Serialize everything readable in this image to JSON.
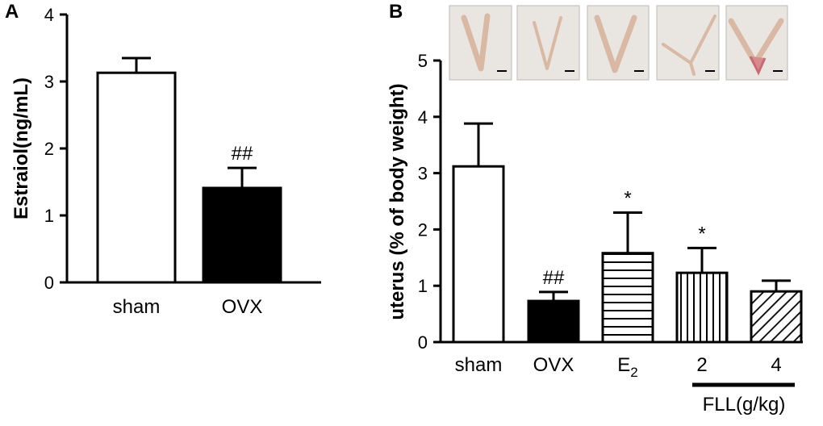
{
  "panels": {
    "a": {
      "label": "A"
    },
    "b": {
      "label": "B"
    }
  },
  "photos": [
    {
      "id": "sham"
    },
    {
      "id": "OVX"
    },
    {
      "id": "E2"
    },
    {
      "id": "FLL-2"
    },
    {
      "id": "FLL-4"
    }
  ],
  "group_label": "FLL(g/kg)",
  "chart_data": [
    {
      "type": "bar",
      "panel": "A",
      "categories": [
        "sham",
        "OVX"
      ],
      "values": [
        3.13,
        1.41
      ],
      "errors": [
        0.22,
        0.3
      ],
      "annotations": [
        "",
        "##"
      ],
      "fills": [
        "white",
        "black"
      ],
      "ylabel": "Estraiol(ng/mL)",
      "ylim": [
        0,
        4
      ],
      "yticks": [
        0,
        1,
        2,
        3,
        4
      ]
    },
    {
      "type": "bar",
      "panel": "B",
      "categories": [
        "sham",
        "OVX",
        "E2",
        "2",
        "4"
      ],
      "values": [
        3.12,
        0.73,
        1.58,
        1.23,
        0.9
      ],
      "errors": [
        0.76,
        0.16,
        0.72,
        0.44,
        0.19
      ],
      "annotations": [
        "",
        "##",
        "*",
        "*",
        ""
      ],
      "fills": [
        "white",
        "black",
        "hlines",
        "vlines",
        "diag"
      ],
      "ylabel": "uterus (% of body weight)",
      "ylim": [
        0,
        5
      ],
      "yticks": [
        0,
        1,
        2,
        3,
        4,
        5
      ]
    }
  ]
}
